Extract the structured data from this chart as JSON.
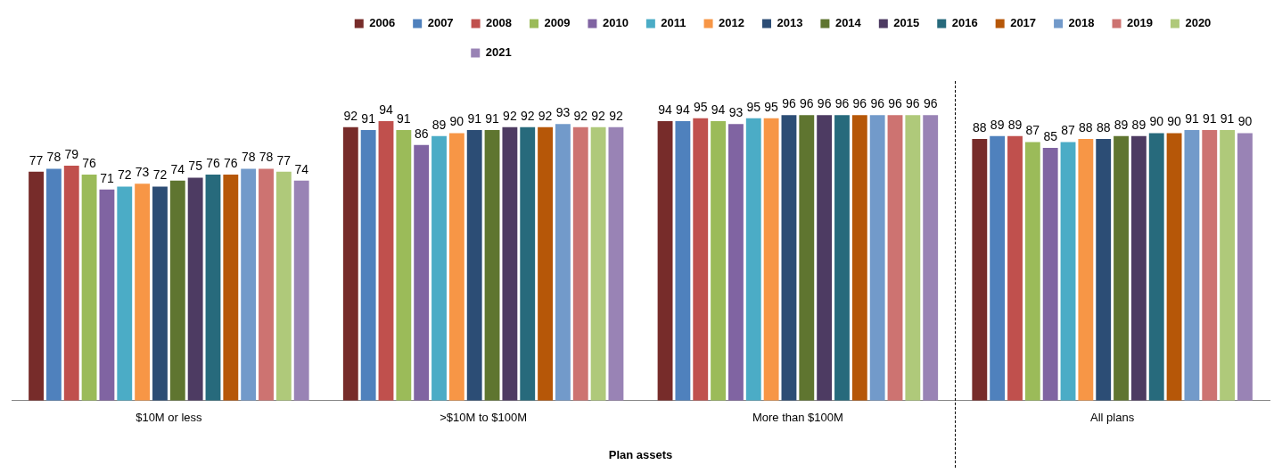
{
  "chart_data": {
    "type": "bar",
    "xlabel": "Plan assets",
    "categories": [
      "$10M or less",
      ">$10M to $100M",
      "More than $100M",
      "All plans"
    ],
    "series": [
      {
        "name": "2006",
        "color": "#772c2a",
        "values": [
          77,
          92,
          94,
          88
        ]
      },
      {
        "name": "2007",
        "color": "#4f81bd",
        "values": [
          78,
          91,
          94,
          89
        ]
      },
      {
        "name": "2008",
        "color": "#c0504d",
        "values": [
          79,
          94,
          95,
          89
        ]
      },
      {
        "name": "2009",
        "color": "#9bbb59",
        "values": [
          76,
          91,
          94,
          87
        ]
      },
      {
        "name": "2010",
        "color": "#8064a2",
        "values": [
          71,
          86,
          93,
          85
        ]
      },
      {
        "name": "2011",
        "color": "#4bacc6",
        "values": [
          72,
          89,
          95,
          87
        ]
      },
      {
        "name": "2012",
        "color": "#f79646",
        "values": [
          73,
          90,
          95,
          88
        ]
      },
      {
        "name": "2013",
        "color": "#2c4d75",
        "values": [
          72,
          91,
          96,
          88
        ]
      },
      {
        "name": "2014",
        "color": "#5f7530",
        "values": [
          74,
          91,
          96,
          89
        ]
      },
      {
        "name": "2015",
        "color": "#4d3b62",
        "values": [
          75,
          92,
          96,
          89
        ]
      },
      {
        "name": "2016",
        "color": "#276a7c",
        "values": [
          76,
          92,
          96,
          90
        ]
      },
      {
        "name": "2017",
        "color": "#b65708",
        "values": [
          76,
          92,
          96,
          90
        ]
      },
      {
        "name": "2018",
        "color": "#729aca",
        "values": [
          78,
          93,
          96,
          91
        ]
      },
      {
        "name": "2019",
        "color": "#cd7371",
        "values": [
          78,
          92,
          96,
          91
        ]
      },
      {
        "name": "2020",
        "color": "#afc97a",
        "values": [
          77,
          92,
          96,
          91
        ]
      },
      {
        "name": "2021",
        "color": "#9983b5",
        "values": [
          74,
          92,
          96,
          90
        ]
      }
    ],
    "tick_labels": "x",
    "grid": false,
    "legend": "top",
    "data_labels": true
  }
}
